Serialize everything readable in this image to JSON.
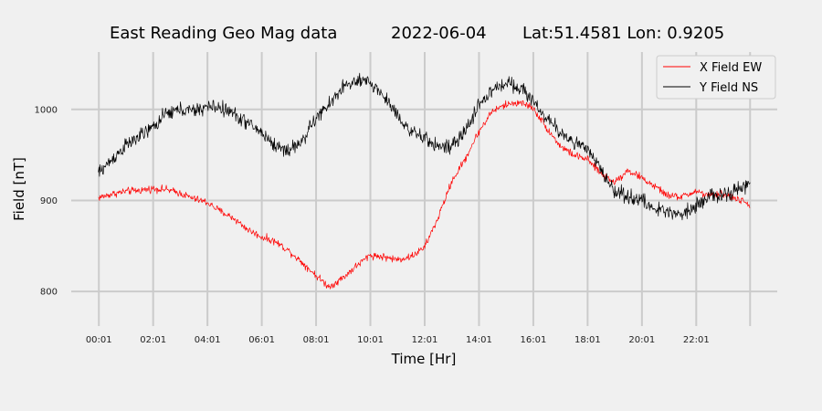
{
  "chart_data": {
    "type": "line",
    "title_parts": [
      "East Reading Geo Mag data",
      "2022-06-04",
      "Lat:51.4581  Lon: 0.9205"
    ],
    "xlabel": "Time  [Hr]",
    "ylabel": "Field  [nT]",
    "x_ticks": [
      {
        "hour": 0.0167,
        "label": "00:01"
      },
      {
        "hour": 2.0167,
        "label": "02:01"
      },
      {
        "hour": 4.0167,
        "label": "04:01"
      },
      {
        "hour": 6.0167,
        "label": "06:01"
      },
      {
        "hour": 8.0167,
        "label": "08:01"
      },
      {
        "hour": 10.0167,
        "label": "10:01"
      },
      {
        "hour": 12.0167,
        "label": "12:01"
      },
      {
        "hour": 14.0167,
        "label": "14:01"
      },
      {
        "hour": 16.0167,
        "label": "16:01"
      },
      {
        "hour": 18.0167,
        "label": "18:01"
      },
      {
        "hour": 20.0167,
        "label": "20:01"
      },
      {
        "hour": 22.0167,
        "label": "22:01"
      },
      {
        "hour": 24.0,
        "label": ""
      }
    ],
    "y_ticks": [
      800,
      900,
      1000
    ],
    "xlim": [
      -1.0,
      25.0
    ],
    "ylim": [
      762,
      1063
    ],
    "grid": true,
    "legend_position": "top-right",
    "series": [
      {
        "name": "X Field EW",
        "color": "#ff0000",
        "noise": 4,
        "x": [
          0,
          0.5,
          1,
          1.5,
          2,
          2.5,
          3,
          3.5,
          4,
          4.5,
          5,
          5.5,
          6,
          6.5,
          7,
          7.5,
          8,
          8.5,
          9,
          9.5,
          10,
          10.5,
          11,
          11.5,
          12,
          12.5,
          13,
          13.5,
          14,
          14.5,
          15,
          15.5,
          16,
          16.5,
          17,
          17.5,
          18,
          18.5,
          19,
          19.5,
          20,
          20.5,
          21,
          21.5,
          22,
          22.5,
          23,
          23.5,
          24
        ],
        "values": [
          903,
          907,
          910,
          911,
          913,
          912,
          908,
          902,
          898,
          888,
          880,
          868,
          860,
          855,
          845,
          832,
          818,
          805,
          815,
          828,
          840,
          838,
          835,
          838,
          848,
          880,
          920,
          945,
          975,
          998,
          1005,
          1008,
          1002,
          980,
          960,
          950,
          945,
          930,
          920,
          933,
          925,
          915,
          905,
          904,
          910,
          905,
          907,
          902,
          895
        ]
      },
      {
        "name": "Y Field NS",
        "color": "#000000",
        "noise": 8,
        "x": [
          0,
          0.5,
          1,
          1.5,
          2,
          2.5,
          3,
          3.5,
          4,
          4.5,
          5,
          5.5,
          6,
          6.5,
          7,
          7.5,
          8,
          8.5,
          9,
          9.5,
          10,
          10.5,
          11,
          11.5,
          12,
          12.5,
          13,
          13.5,
          14,
          14.5,
          15,
          15.5,
          16,
          16.5,
          17,
          17.5,
          18,
          18.5,
          19,
          19.5,
          20,
          20.5,
          21,
          21.5,
          22,
          22.5,
          23,
          23.5,
          24
        ],
        "values": [
          930,
          945,
          960,
          970,
          980,
          995,
          1000,
          998,
          1003,
          1002,
          995,
          985,
          975,
          960,
          955,
          965,
          990,
          1005,
          1025,
          1030,
          1030,
          1015,
          995,
          975,
          968,
          960,
          958,
          975,
          1005,
          1020,
          1030,
          1025,
          1010,
          990,
          975,
          965,
          955,
          935,
          910,
          905,
          900,
          890,
          888,
          885,
          895,
          905,
          905,
          910,
          920
        ]
      }
    ]
  }
}
